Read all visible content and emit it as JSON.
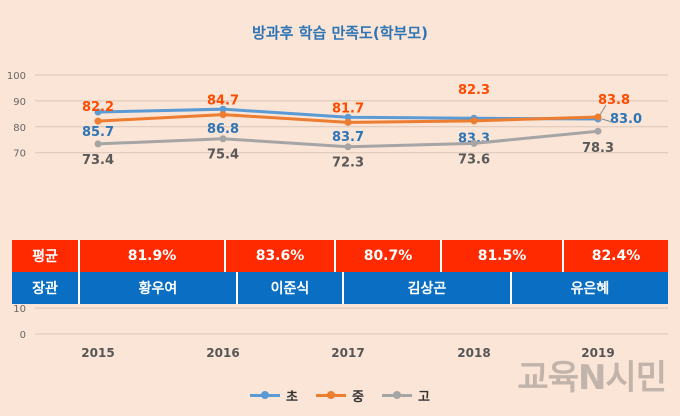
{
  "chart_data": {
    "type": "line",
    "title": "방과후 학습 만족도(학부모)",
    "categories": [
      "2015",
      "2016",
      "2017",
      "2018",
      "2019"
    ],
    "ylim": [
      0,
      100
    ],
    "yticks": [
      0,
      10,
      70,
      80,
      90,
      100
    ],
    "grid": true,
    "legend_position": "bottom",
    "series": [
      {
        "name": "초",
        "color": "#5b9bd5",
        "values": [
          85.7,
          86.8,
          83.7,
          83.3,
          83.0
        ]
      },
      {
        "name": "중",
        "color": "#ed7d31",
        "values": [
          82.2,
          84.7,
          81.7,
          82.3,
          83.8
        ]
      },
      {
        "name": "고",
        "color": "#a5a5a5",
        "values": [
          73.4,
          75.4,
          72.3,
          73.6,
          78.3
        ]
      }
    ],
    "average_row": {
      "label": "평균",
      "values": [
        "81.9%",
        "83.6%",
        "80.7%",
        "81.5%",
        "82.4%"
      ]
    },
    "leader_row": {
      "label": "장관",
      "names": [
        "황우여",
        "이준식",
        "김상곤",
        "유은혜"
      ]
    }
  },
  "watermark": "교육N시민"
}
